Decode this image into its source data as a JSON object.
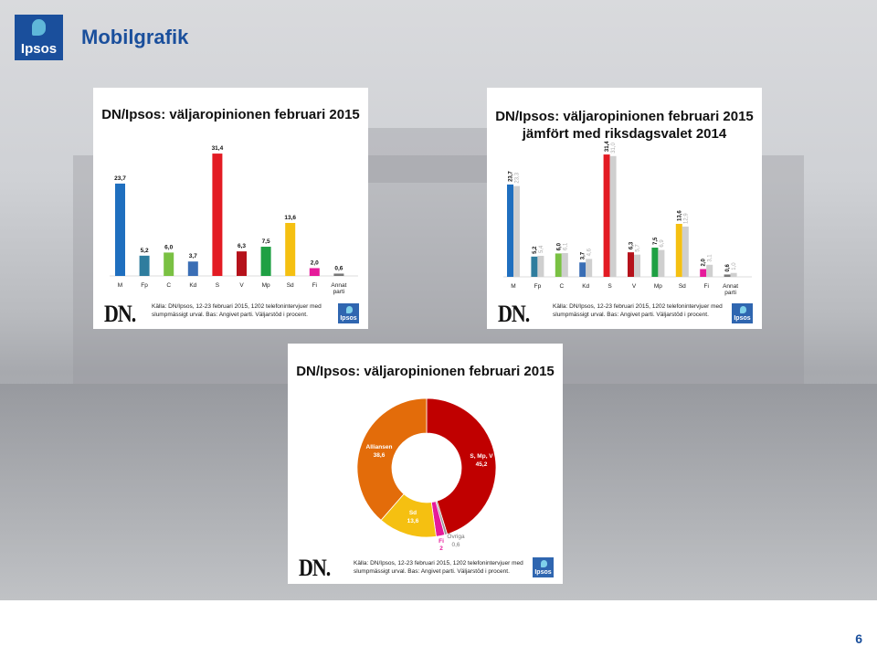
{
  "header": {
    "title": "Mobilgrafik",
    "logo_text": "Ipsos",
    "page_number": "6"
  },
  "colors": {
    "M": "#1f6fbf",
    "Fp": "#2f7d9e",
    "C": "#7ac143",
    "Kd": "#3a6eb5",
    "S": "#e31b23",
    "V": "#b5121b",
    "Mp": "#1fa043",
    "Sd": "#f5c011",
    "Fi": "#e61b9b",
    "Annat": "#777777",
    "prev": "#cfcfcf",
    "alliance": "#e36c0a",
    "left": "#c00000",
    "other": "#999999"
  },
  "chart_data": [
    {
      "type": "bar",
      "title": "DN/Ipsos: väljaropinionen februari 2015",
      "categories": [
        "M",
        "Fp",
        "C",
        "Kd",
        "S",
        "V",
        "Mp",
        "Sd",
        "Fi",
        "Annat parti"
      ],
      "category_lines": [
        [
          "M"
        ],
        [
          "Fp"
        ],
        [
          "C"
        ],
        [
          "Kd"
        ],
        [
          "S"
        ],
        [
          "V"
        ],
        [
          "Mp"
        ],
        [
          "Sd"
        ],
        [
          "Fi"
        ],
        [
          "Annat",
          "parti"
        ]
      ],
      "series": [
        {
          "values": [
            23.7,
            5.2,
            6.0,
            3.7,
            31.4,
            6.3,
            7.5,
            13.6,
            2.0,
            0.6
          ],
          "labels": [
            "23,7",
            "5,2",
            "6,0",
            "3,7",
            "31,4",
            "6,3",
            "7,5",
            "13,6",
            "2,0",
            "0,6"
          ]
        }
      ],
      "ylim": [
        0,
        34
      ],
      "source_lines": [
        "Källa: DN/Ipsos, 12-23 februari 2015, 1202 telefonintervjuer med",
        "slumpmässigt urval. Bas: Angivet parti. Väljarstöd i procent."
      ],
      "brand": "DN.",
      "badge": "Ipsos"
    },
    {
      "type": "bar",
      "title_lines": [
        "DN/Ipsos: väljaropinionen februari 2015",
        "jämfört med riksdagsvalet 2014"
      ],
      "categories": [
        "M",
        "Fp",
        "C",
        "Kd",
        "S",
        "V",
        "Mp",
        "Sd",
        "Fi",
        "Annat parti"
      ],
      "category_lines": [
        [
          "M"
        ],
        [
          "Fp"
        ],
        [
          "C"
        ],
        [
          "Kd"
        ],
        [
          "S"
        ],
        [
          "V"
        ],
        [
          "Mp"
        ],
        [
          "Sd"
        ],
        [
          "Fi"
        ],
        [
          "Annat",
          "parti"
        ]
      ],
      "series": [
        {
          "values": [
            23.7,
            5.2,
            6.0,
            3.7,
            31.4,
            6.3,
            7.5,
            13.6,
            2.0,
            0.6
          ],
          "labels": [
            "23,7",
            "5,2",
            "6,0",
            "3,7",
            "31,4",
            "6,3",
            "7,5",
            "13,6",
            "2,0",
            "0,6"
          ]
        },
        {
          "values": [
            23.3,
            5.4,
            6.1,
            4.6,
            31.0,
            5.7,
            6.9,
            12.9,
            3.1,
            1.0
          ],
          "labels": [
            "23,3",
            "5,4",
            "6,1",
            "4,6",
            "31,0",
            "5,7",
            "6,9",
            "12,9",
            "3,1",
            "1,0"
          ]
        }
      ],
      "ylim": [
        0,
        34
      ],
      "source_lines": [
        "Källa: DN/Ipsos, 12-23 februari 2015, 1202 telefonintervjuer med",
        "slumpmässigt urval. Bas: Angivet parti. Väljarstöd i procent."
      ],
      "brand": "DN.",
      "badge": "Ipsos"
    },
    {
      "type": "pie",
      "title": "DN/Ipsos: väljaropinionen februari 2015",
      "slices": [
        {
          "name": "S, Mp, V",
          "value": 45.2,
          "label": "45,2"
        },
        {
          "name": "Övriga",
          "value": 0.6,
          "label": "0,6"
        },
        {
          "name": "Fi",
          "value": 2,
          "label": "2"
        },
        {
          "name": "Sd",
          "value": 13.6,
          "label": "13,6"
        },
        {
          "name": "Alliansen",
          "value": 38.6,
          "label": "38,6"
        }
      ],
      "source_lines": [
        "Källa: DN/Ipsos, 12-23 februari 2015, 1202 telefonintervjuer med",
        "slumpmässigt urval. Bas: Angivet parti. Väljarstöd i procent."
      ],
      "brand": "DN.",
      "badge": "Ipsos"
    }
  ]
}
